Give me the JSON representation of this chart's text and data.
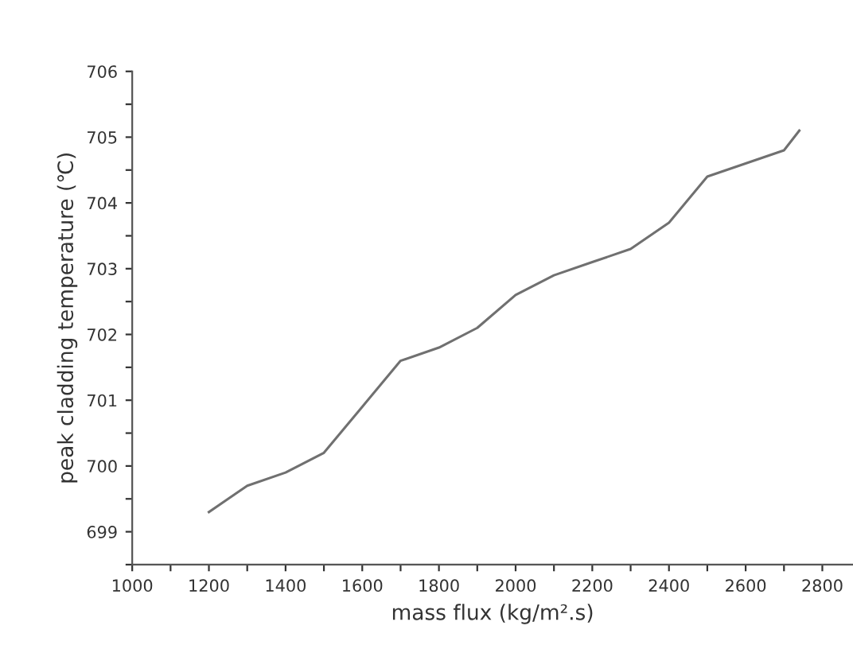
{
  "chart_data": {
    "type": "line",
    "xlabel": "mass flux (kg/m².s)",
    "ylabel": "peak cladding temperature (℃)",
    "x": [
      1200,
      1250,
      1300,
      1400,
      1500,
      1600,
      1700,
      1800,
      1900,
      2000,
      2100,
      2200,
      2300,
      2400,
      2500,
      2600,
      2700,
      2740
    ],
    "series": [
      {
        "color": "#707070",
        "values": [
          699.3,
          699.5,
          699.7,
          699.9,
          700.2,
          700.9,
          701.6,
          701.8,
          702.1,
          702.6,
          702.9,
          703.1,
          703.3,
          703.7,
          704.4,
          704.6,
          704.8,
          705.1
        ]
      }
    ],
    "xlim": [
      1000,
      2880
    ],
    "ylim": [
      698.5,
      706
    ],
    "xticks": [
      1000,
      {
        "value": 1100,
        "label": null
      },
      1200,
      {
        "value": 1300,
        "label": null
      },
      1400,
      {
        "value": 1500,
        "label": null
      },
      1600,
      {
        "value": 1700,
        "label": null
      },
      1800,
      {
        "value": 1900,
        "label": null
      },
      2000,
      {
        "value": 2100,
        "label": null
      },
      2200,
      {
        "value": 2300,
        "label": null
      },
      2400,
      {
        "value": 2500,
        "label": null
      },
      2600,
      {
        "value": 2700,
        "label": null
      },
      2800
    ],
    "yticks": [
      {
        "value": 698.5,
        "label": null
      },
      699,
      {
        "value": 699.5,
        "label": null
      },
      700,
      {
        "value": 700.5,
        "label": null
      },
      701,
      {
        "value": 701.5,
        "label": null
      },
      702,
      {
        "value": 702.5,
        "label": null
      },
      703,
      {
        "value": 703.5,
        "label": null
      },
      704,
      {
        "value": 704.5,
        "label": null
      },
      705,
      {
        "value": 705.5,
        "label": null
      },
      706
    ],
    "grid": false,
    "legend": false,
    "marker": "none",
    "line_style": "solid"
  }
}
